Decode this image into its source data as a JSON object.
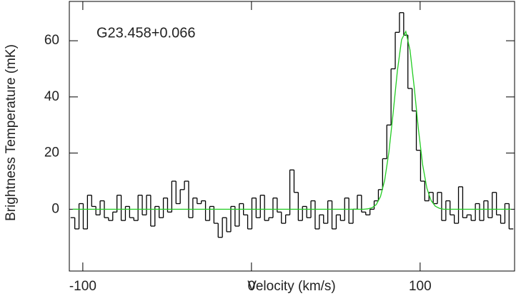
{
  "chart_data": {
    "type": "step",
    "annotation": "G23.458+0.066",
    "x_label": "Velocity (km/s)",
    "y_label": "Brightness Temperature (mK)",
    "xlim": [
      -108,
      156
    ],
    "ylim": [
      -22,
      74
    ],
    "xticks": [
      -100,
      0,
      100
    ],
    "yticks": [
      0,
      20,
      40,
      60
    ],
    "x": [
      -106,
      -103.5,
      -101,
      -98.5,
      -96,
      -93.5,
      -91,
      -88.5,
      -86,
      -83.5,
      -81,
      -78.5,
      -76,
      -73.5,
      -71,
      -68.5,
      -66,
      -63.5,
      -61,
      -58.5,
      -56,
      -53.5,
      -51,
      -48.5,
      -46,
      -43.5,
      -41,
      -38.5,
      -36,
      -33.5,
      -31,
      -28.5,
      -26,
      -23.5,
      -21,
      -18.5,
      -16,
      -13.5,
      -11,
      -8.5,
      -6,
      -3.5,
      -1,
      1.5,
      4,
      6.5,
      9,
      11.5,
      14,
      16.5,
      19,
      21.5,
      24,
      26.5,
      29,
      31.5,
      34,
      36.5,
      39,
      41.5,
      44,
      46.5,
      49,
      51.5,
      54,
      56.5,
      59,
      61.5,
      64,
      66.5,
      69,
      71.5,
      74,
      76.5,
      79,
      81.5,
      84,
      86.5,
      89,
      91.5,
      94,
      96.5,
      99,
      101.5,
      104,
      106.5,
      109,
      111.5,
      114,
      116.5,
      119,
      121.5,
      124,
      126.5,
      129,
      131.5,
      134,
      136.5,
      139,
      141.5,
      144,
      146.5,
      149,
      151.5,
      154
    ],
    "series": [
      {
        "kind": "step",
        "color": "#000000",
        "values": [
          -3,
          -7,
          2,
          -7,
          5,
          1,
          -2,
          3,
          -3,
          -4,
          -1,
          5,
          -4,
          1,
          -3,
          -4,
          5,
          -2,
          5,
          -6,
          1,
          -3,
          4,
          -1,
          10,
          2,
          7,
          10,
          -3,
          4,
          2,
          3,
          -4,
          1,
          -5,
          -10,
          -3,
          -8,
          1,
          -6,
          2,
          -2,
          -7,
          4,
          -3,
          5,
          -4,
          -3,
          4,
          -1,
          -5,
          -2,
          14,
          6,
          -4,
          1,
          -3,
          3,
          -7,
          -2,
          -5,
          3,
          -7,
          -2,
          -4,
          4,
          -5,
          0,
          5,
          -1,
          -2,
          0,
          3,
          7,
          18,
          30,
          50,
          63,
          70,
          62,
          43,
          35,
          21,
          10,
          3,
          6,
          2,
          6,
          -4,
          3,
          -2,
          -5,
          8,
          -3,
          -2,
          -4,
          2,
          -4,
          3,
          -3,
          6,
          -2,
          -5,
          2,
          -7
        ]
      },
      {
        "kind": "line",
        "color": "#22cc22",
        "values": [
          0,
          0,
          0,
          0,
          0,
          0,
          0,
          0,
          0,
          0,
          0,
          0,
          0,
          0,
          0,
          0,
          0,
          0,
          0,
          0,
          0,
          0,
          0,
          0,
          0,
          0,
          0,
          0,
          0,
          0,
          0,
          0,
          0,
          0,
          0,
          0,
          0,
          0,
          0,
          0,
          0,
          0,
          0,
          0,
          0,
          0,
          0,
          0,
          0,
          0,
          0,
          0,
          0,
          0,
          0,
          0,
          0,
          0,
          0,
          0,
          0,
          0,
          0,
          0,
          0,
          0,
          0,
          0,
          0,
          0,
          0.14,
          0.53,
          1.67,
          4.5,
          10.4,
          20.4,
          34.3,
          49.2,
          60.4,
          63.3,
          56.7,
          43.4,
          28.4,
          15.8,
          7.5,
          3.1,
          1.07,
          0.32,
          0,
          0,
          0,
          0,
          0,
          0,
          0,
          0,
          0,
          0,
          0,
          0,
          0,
          0,
          0,
          0,
          0
        ]
      }
    ]
  }
}
